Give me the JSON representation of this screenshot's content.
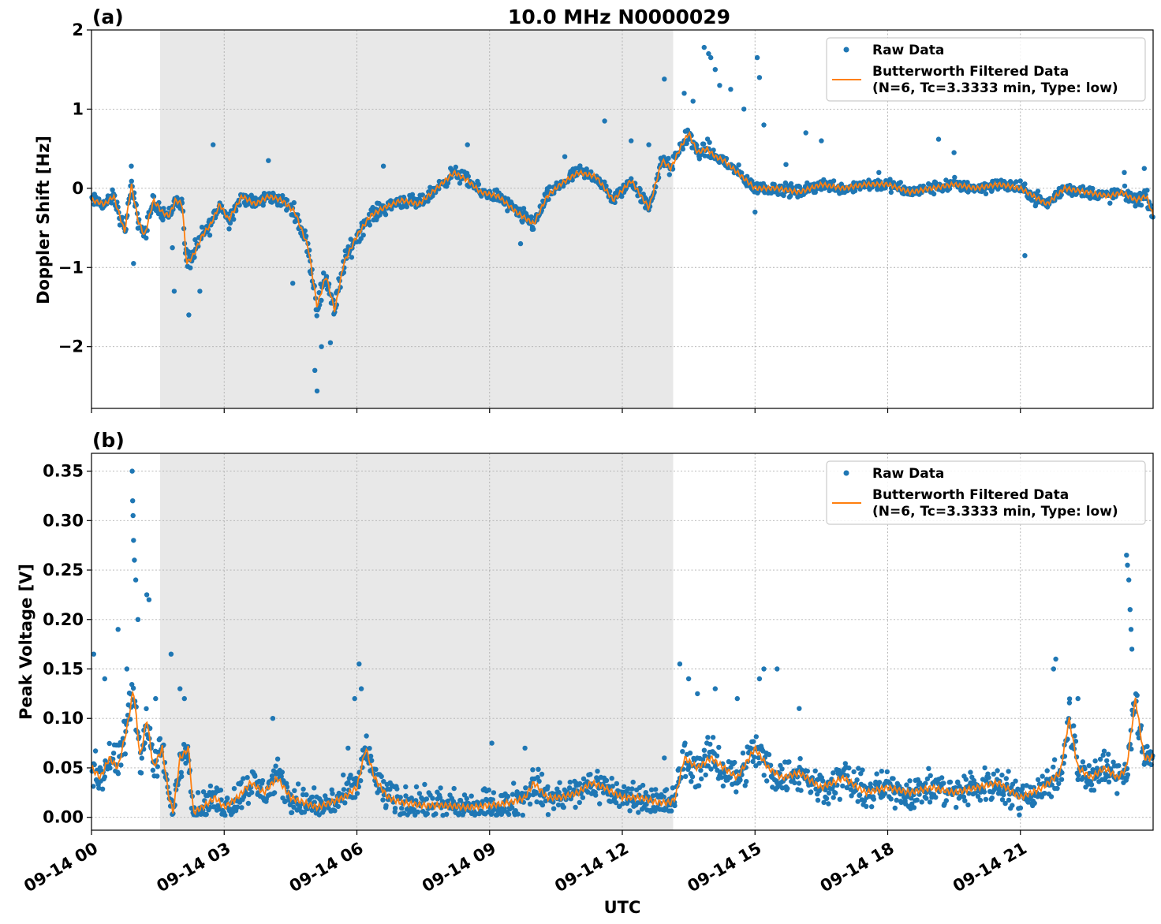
{
  "figure": {
    "title": "10.0 MHz N0000029",
    "xlabel": "UTC"
  },
  "colors": {
    "raw": "#1f77b4",
    "filtered": "#ff7f0e",
    "night_shade": "#e8e8e8",
    "grid": "#b0b0b0"
  },
  "legend": {
    "raw_label": "Raw Data",
    "filtered_label_line1": "Butterworth Filtered Data",
    "filtered_label_line2": "(N=6, Tc=3.3333 min, Type: low)"
  },
  "chart_data": [
    {
      "type": "scatter",
      "panel_label": "(a)",
      "ylabel": "Doppler Shift [Hz]",
      "xlim": [
        0,
        24
      ],
      "ylim": [
        -2.78,
        2.0
      ],
      "yticks": [
        -2,
        -1,
        0,
        1,
        2
      ],
      "ytick_labels": [
        "−2",
        "−1",
        "0",
        "1",
        "2"
      ],
      "shaded_region_hours": [
        1.55,
        13.15
      ],
      "grid": true,
      "legend_position": "upper-right",
      "series": [
        {
          "name": "Raw Data",
          "kind": "points",
          "spread": 0.17,
          "x": [
            0.0,
            0.3,
            0.5,
            0.75,
            0.9,
            1.05,
            1.2,
            1.4,
            1.6,
            1.75,
            1.9,
            2.05,
            2.15,
            2.3,
            2.5,
            2.7,
            2.9,
            3.1,
            3.4,
            3.7,
            4.0,
            4.3,
            4.6,
            4.9,
            5.1,
            5.3,
            5.5,
            5.7,
            6.0,
            6.3,
            6.6,
            7.0,
            7.4,
            7.8,
            8.2,
            8.5,
            8.8,
            9.2,
            9.6,
            10.0,
            10.3,
            10.6,
            11.0,
            11.4,
            11.8,
            12.2,
            12.6,
            12.9,
            13.1,
            13.3,
            13.5,
            13.7,
            13.9,
            14.1,
            14.3,
            14.6,
            15.0,
            15.5,
            16.0,
            16.5,
            17.0,
            17.5,
            18.0,
            18.5,
            19.0,
            19.5,
            20.0,
            20.5,
            21.0,
            21.3,
            21.6,
            22.0,
            22.5,
            23.0,
            23.3,
            23.6,
            23.85,
            24.0
          ],
          "y": [
            -0.15,
            -0.2,
            -0.1,
            -0.55,
            0.05,
            -0.4,
            -0.6,
            -0.15,
            -0.3,
            -0.35,
            -0.15,
            -0.2,
            -0.95,
            -0.85,
            -0.6,
            -0.45,
            -0.2,
            -0.4,
            -0.1,
            -0.2,
            -0.1,
            -0.15,
            -0.3,
            -0.75,
            -1.5,
            -1.1,
            -1.55,
            -0.95,
            -0.6,
            -0.35,
            -0.25,
            -0.15,
            -0.2,
            0.0,
            0.2,
            0.1,
            -0.05,
            -0.1,
            -0.3,
            -0.45,
            -0.1,
            0.05,
            0.2,
            0.15,
            -0.15,
            0.1,
            -0.25,
            0.35,
            0.25,
            0.5,
            0.7,
            0.45,
            0.5,
            0.4,
            0.35,
            0.2,
            0.0,
            0.0,
            -0.05,
            0.05,
            0.0,
            0.05,
            0.05,
            -0.05,
            0.0,
            0.05,
            0.0,
            0.05,
            0.0,
            -0.1,
            -0.2,
            0.0,
            -0.05,
            -0.1,
            -0.05,
            -0.15,
            -0.1,
            -0.35
          ],
          "outliers": [
            [
              0.9,
              0.28
            ],
            [
              0.95,
              -0.95
            ],
            [
              1.83,
              -0.75
            ],
            [
              1.87,
              -1.3
            ],
            [
              2.2,
              -1.6
            ],
            [
              2.45,
              -1.3
            ],
            [
              2.75,
              0.55
            ],
            [
              4.0,
              0.35
            ],
            [
              4.55,
              -1.2
            ],
            [
              5.05,
              -2.3
            ],
            [
              5.1,
              -2.56
            ],
            [
              5.2,
              -2.0
            ],
            [
              5.4,
              -1.95
            ],
            [
              6.6,
              0.28
            ],
            [
              8.5,
              0.55
            ],
            [
              9.7,
              -0.7
            ],
            [
              10.7,
              0.4
            ],
            [
              11.6,
              0.85
            ],
            [
              12.2,
              0.6
            ],
            [
              12.6,
              0.55
            ],
            [
              12.95,
              1.38
            ],
            [
              13.4,
              1.2
            ],
            [
              13.6,
              1.1
            ],
            [
              13.85,
              1.78
            ],
            [
              13.95,
              1.7
            ],
            [
              14.0,
              1.65
            ],
            [
              14.1,
              1.5
            ],
            [
              14.2,
              1.3
            ],
            [
              14.45,
              1.25
            ],
            [
              14.75,
              1.0
            ],
            [
              15.0,
              -0.3
            ],
            [
              15.05,
              1.65
            ],
            [
              15.1,
              1.4
            ],
            [
              15.2,
              0.8
            ],
            [
              15.7,
              0.3
            ],
            [
              16.15,
              0.7
            ],
            [
              16.5,
              0.6
            ],
            [
              17.8,
              0.2
            ],
            [
              19.15,
              0.62
            ],
            [
              19.5,
              0.45
            ],
            [
              21.1,
              -0.85
            ],
            [
              21.35,
              -0.2
            ],
            [
              23.35,
              0.2
            ],
            [
              23.8,
              0.25
            ]
          ]
        },
        {
          "name": "Butterworth Filtered Data\n(N=6, Tc=3.3333 min, Type: low)",
          "kind": "line",
          "x": [
            0.0,
            0.3,
            0.5,
            0.75,
            0.9,
            1.05,
            1.2,
            1.4,
            1.6,
            1.75,
            1.9,
            2.05,
            2.15,
            2.3,
            2.5,
            2.7,
            2.9,
            3.1,
            3.4,
            3.7,
            4.0,
            4.3,
            4.6,
            4.9,
            5.1,
            5.3,
            5.5,
            5.7,
            6.0,
            6.3,
            6.6,
            7.0,
            7.4,
            7.8,
            8.2,
            8.5,
            8.8,
            9.2,
            9.6,
            10.0,
            10.3,
            10.6,
            11.0,
            11.4,
            11.8,
            12.2,
            12.6,
            12.9,
            13.1,
            13.3,
            13.5,
            13.7,
            13.9,
            14.1,
            14.3,
            14.6,
            15.0,
            15.5,
            16.0,
            16.5,
            17.0,
            17.5,
            18.0,
            18.5,
            19.0,
            19.5,
            20.0,
            20.5,
            21.0,
            21.3,
            21.6,
            22.0,
            22.5,
            23.0,
            23.3,
            23.6,
            23.85,
            24.0
          ],
          "y": [
            -0.15,
            -0.2,
            -0.1,
            -0.55,
            0.05,
            -0.4,
            -0.6,
            -0.15,
            -0.3,
            -0.35,
            -0.15,
            -0.2,
            -0.95,
            -0.85,
            -0.6,
            -0.45,
            -0.2,
            -0.4,
            -0.1,
            -0.2,
            -0.1,
            -0.15,
            -0.3,
            -0.75,
            -1.5,
            -1.1,
            -1.55,
            -0.95,
            -0.6,
            -0.35,
            -0.25,
            -0.15,
            -0.2,
            0.0,
            0.2,
            0.1,
            -0.05,
            -0.1,
            -0.3,
            -0.45,
            -0.1,
            0.05,
            0.2,
            0.15,
            -0.15,
            0.1,
            -0.25,
            0.35,
            0.25,
            0.5,
            0.7,
            0.45,
            0.5,
            0.4,
            0.35,
            0.2,
            0.0,
            0.0,
            -0.05,
            0.05,
            0.0,
            0.05,
            0.05,
            -0.05,
            0.0,
            0.05,
            0.0,
            0.05,
            0.0,
            -0.1,
            -0.2,
            0.0,
            -0.05,
            -0.1,
            -0.05,
            -0.15,
            -0.1,
            -0.35
          ]
        }
      ]
    },
    {
      "type": "scatter",
      "panel_label": "(b)",
      "ylabel": "Peak Voltage [V]",
      "xlim": [
        0,
        24
      ],
      "ylim": [
        -0.013,
        0.368
      ],
      "yticks": [
        0.0,
        0.05,
        0.1,
        0.15,
        0.2,
        0.25,
        0.3,
        0.35
      ],
      "ytick_labels": [
        "0.00",
        "0.05",
        "0.10",
        "0.15",
        "0.20",
        "0.25",
        "0.30",
        "0.35"
      ],
      "xticks": [
        0,
        3,
        6,
        9,
        12,
        15,
        18,
        21
      ],
      "xtick_labels": [
        "09-14 00",
        "09-14 03",
        "09-14 06",
        "09-14 09",
        "09-14 12",
        "09-14 15",
        "09-14 18",
        "09-14 21"
      ],
      "shaded_region_hours": [
        1.55,
        13.15
      ],
      "grid": true,
      "legend_position": "upper-right",
      "series": [
        {
          "name": "Raw Data",
          "kind": "points",
          "spread": 0.032,
          "floor": 0.002,
          "x": [
            0.0,
            0.2,
            0.4,
            0.6,
            0.8,
            0.95,
            1.1,
            1.25,
            1.4,
            1.6,
            1.75,
            1.85,
            2.0,
            2.2,
            2.3,
            2.5,
            2.8,
            3.0,
            3.3,
            3.6,
            3.9,
            4.2,
            4.5,
            4.8,
            5.1,
            5.4,
            5.7,
            6.0,
            6.2,
            6.4,
            6.7,
            7.0,
            7.5,
            8.0,
            8.5,
            9.0,
            9.5,
            9.8,
            10.0,
            10.3,
            10.6,
            11.0,
            11.3,
            11.6,
            12.0,
            12.4,
            12.8,
            13.1,
            13.2,
            13.4,
            13.7,
            14.0,
            14.3,
            14.6,
            15.0,
            15.3,
            15.6,
            16.0,
            16.5,
            17.0,
            17.5,
            18.0,
            18.5,
            19.0,
            19.5,
            20.0,
            20.5,
            21.0,
            21.5,
            21.9,
            22.1,
            22.3,
            22.6,
            22.9,
            23.2,
            23.4,
            23.6,
            23.8,
            24.0
          ],
          "y": [
            0.05,
            0.04,
            0.06,
            0.05,
            0.09,
            0.13,
            0.06,
            0.1,
            0.05,
            0.07,
            0.02,
            0.005,
            0.06,
            0.07,
            0.005,
            0.01,
            0.02,
            0.01,
            0.02,
            0.035,
            0.025,
            0.04,
            0.02,
            0.015,
            0.01,
            0.015,
            0.02,
            0.03,
            0.07,
            0.04,
            0.02,
            0.015,
            0.012,
            0.012,
            0.01,
            0.012,
            0.015,
            0.02,
            0.035,
            0.02,
            0.02,
            0.025,
            0.035,
            0.03,
            0.02,
            0.02,
            0.015,
            0.015,
            0.02,
            0.06,
            0.05,
            0.06,
            0.05,
            0.04,
            0.07,
            0.05,
            0.04,
            0.045,
            0.03,
            0.04,
            0.025,
            0.03,
            0.025,
            0.03,
            0.025,
            0.03,
            0.035,
            0.02,
            0.03,
            0.045,
            0.1,
            0.05,
            0.04,
            0.05,
            0.04,
            0.05,
            0.12,
            0.06,
            0.06
          ],
          "outliers": [
            [
              0.05,
              0.165
            ],
            [
              0.3,
              0.14
            ],
            [
              0.6,
              0.19
            ],
            [
              0.8,
              0.15
            ],
            [
              0.92,
              0.35
            ],
            [
              0.93,
              0.32
            ],
            [
              0.94,
              0.305
            ],
            [
              0.95,
              0.28
            ],
            [
              0.97,
              0.26
            ],
            [
              1.0,
              0.24
            ],
            [
              1.05,
              0.2
            ],
            [
              1.25,
              0.225
            ],
            [
              1.3,
              0.22
            ],
            [
              1.45,
              0.12
            ],
            [
              1.8,
              0.165
            ],
            [
              2.0,
              0.13
            ],
            [
              2.1,
              0.12
            ],
            [
              4.1,
              0.1
            ],
            [
              5.8,
              0.07
            ],
            [
              5.95,
              0.12
            ],
            [
              6.05,
              0.155
            ],
            [
              6.1,
              0.13
            ],
            [
              9.05,
              0.075
            ],
            [
              9.8,
              0.07
            ],
            [
              12.95,
              0.06
            ],
            [
              13.3,
              0.155
            ],
            [
              13.5,
              0.14
            ],
            [
              13.7,
              0.125
            ],
            [
              14.1,
              0.13
            ],
            [
              14.6,
              0.12
            ],
            [
              15.1,
              0.14
            ],
            [
              15.2,
              0.15
            ],
            [
              15.5,
              0.15
            ],
            [
              16.0,
              0.11
            ],
            [
              21.75,
              0.15
            ],
            [
              21.8,
              0.16
            ],
            [
              22.3,
              0.12
            ],
            [
              23.4,
              0.265
            ],
            [
              23.42,
              0.255
            ],
            [
              23.45,
              0.24
            ],
            [
              23.48,
              0.21
            ],
            [
              23.5,
              0.19
            ],
            [
              23.52,
              0.17
            ]
          ]
        },
        {
          "name": "Butterworth Filtered Data\n(N=6, Tc=3.3333 min, Type: low)",
          "kind": "line",
          "x": [
            0.0,
            0.2,
            0.4,
            0.6,
            0.8,
            0.95,
            1.1,
            1.25,
            1.4,
            1.6,
            1.75,
            1.85,
            2.0,
            2.2,
            2.3,
            2.5,
            2.8,
            3.0,
            3.3,
            3.6,
            3.9,
            4.2,
            4.5,
            4.8,
            5.1,
            5.4,
            5.7,
            6.0,
            6.2,
            6.4,
            6.7,
            7.0,
            7.5,
            8.0,
            8.5,
            9.0,
            9.5,
            9.8,
            10.0,
            10.3,
            10.6,
            11.0,
            11.3,
            11.6,
            12.0,
            12.4,
            12.8,
            13.1,
            13.2,
            13.4,
            13.7,
            14.0,
            14.3,
            14.6,
            15.0,
            15.3,
            15.6,
            16.0,
            16.5,
            17.0,
            17.5,
            18.0,
            18.5,
            19.0,
            19.5,
            20.0,
            20.5,
            21.0,
            21.5,
            21.9,
            22.1,
            22.3,
            22.6,
            22.9,
            23.2,
            23.4,
            23.6,
            23.8,
            24.0
          ],
          "y": [
            0.05,
            0.04,
            0.06,
            0.05,
            0.09,
            0.13,
            0.06,
            0.1,
            0.05,
            0.07,
            0.02,
            0.005,
            0.06,
            0.07,
            0.005,
            0.01,
            0.02,
            0.01,
            0.02,
            0.035,
            0.025,
            0.04,
            0.02,
            0.015,
            0.01,
            0.015,
            0.02,
            0.03,
            0.07,
            0.04,
            0.02,
            0.015,
            0.012,
            0.012,
            0.01,
            0.012,
            0.015,
            0.02,
            0.035,
            0.02,
            0.02,
            0.025,
            0.035,
            0.03,
            0.02,
            0.02,
            0.015,
            0.015,
            0.02,
            0.06,
            0.05,
            0.06,
            0.05,
            0.04,
            0.07,
            0.05,
            0.04,
            0.045,
            0.03,
            0.04,
            0.025,
            0.03,
            0.025,
            0.03,
            0.025,
            0.03,
            0.035,
            0.02,
            0.03,
            0.045,
            0.1,
            0.05,
            0.04,
            0.05,
            0.04,
            0.05,
            0.12,
            0.06,
            0.06
          ]
        }
      ]
    }
  ]
}
